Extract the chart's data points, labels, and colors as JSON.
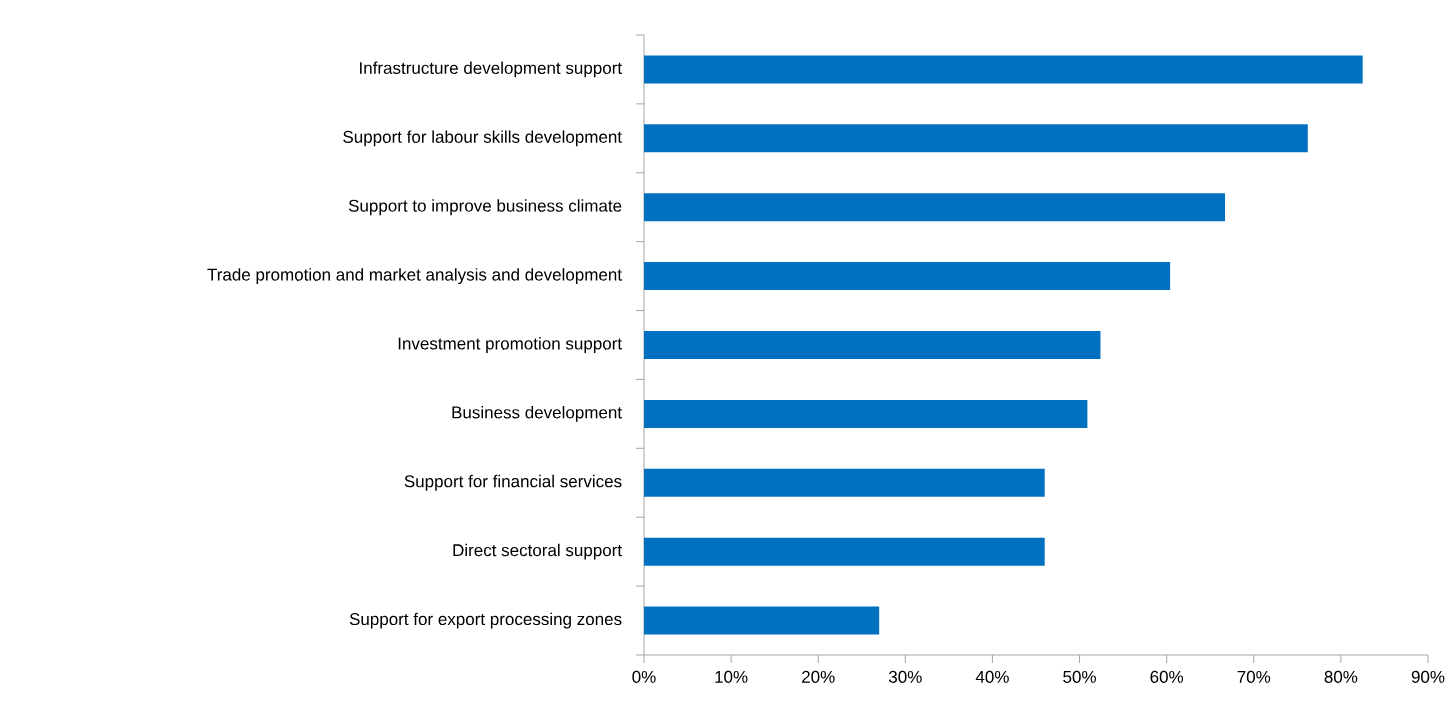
{
  "chart_data": {
    "type": "bar",
    "orientation": "horizontal",
    "categories": [
      "Infrastructure development support",
      "Support for labour skills development",
      "Support to improve business climate",
      "Trade promotion and market analysis and development",
      "Investment promotion support",
      "Business development",
      "Support for financial services",
      "Direct sectoral support",
      "Support for export processing zones"
    ],
    "values": [
      82.5,
      76.2,
      66.7,
      60.4,
      52.4,
      50.9,
      46,
      46,
      27
    ],
    "color": "#0070c0",
    "xlim": [
      0,
      90
    ],
    "xticks": [
      {
        "value": 0,
        "label": "0%"
      },
      {
        "value": 10,
        "label": "10%"
      },
      {
        "value": 20,
        "label": "20%"
      },
      {
        "value": 30,
        "label": "30%"
      },
      {
        "value": 40,
        "label": "40%"
      },
      {
        "value": 50,
        "label": "50%"
      },
      {
        "value": 60,
        "label": "60%"
      },
      {
        "value": 70,
        "label": "70%"
      },
      {
        "value": 80,
        "label": "80%"
      },
      {
        "value": 90,
        "label": "90%"
      }
    ]
  }
}
